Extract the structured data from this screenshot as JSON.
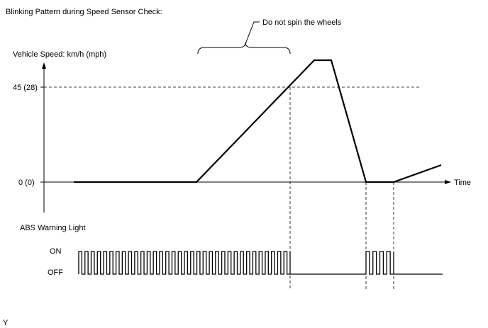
{
  "title": "Blinking Pattern during Speed Sensor Check:",
  "annotation": "Do not spin the wheels",
  "speed_graph": {
    "y_axis_label": "Vehicle Speed: km/h (mph)",
    "y_ticks": [
      "45 (28)",
      "0 (0)"
    ],
    "x_axis_label": "Time"
  },
  "abs_graph": {
    "label": "ABS Warning Light",
    "levels": [
      "ON",
      "OFF"
    ]
  },
  "footer_mark": "Y"
}
